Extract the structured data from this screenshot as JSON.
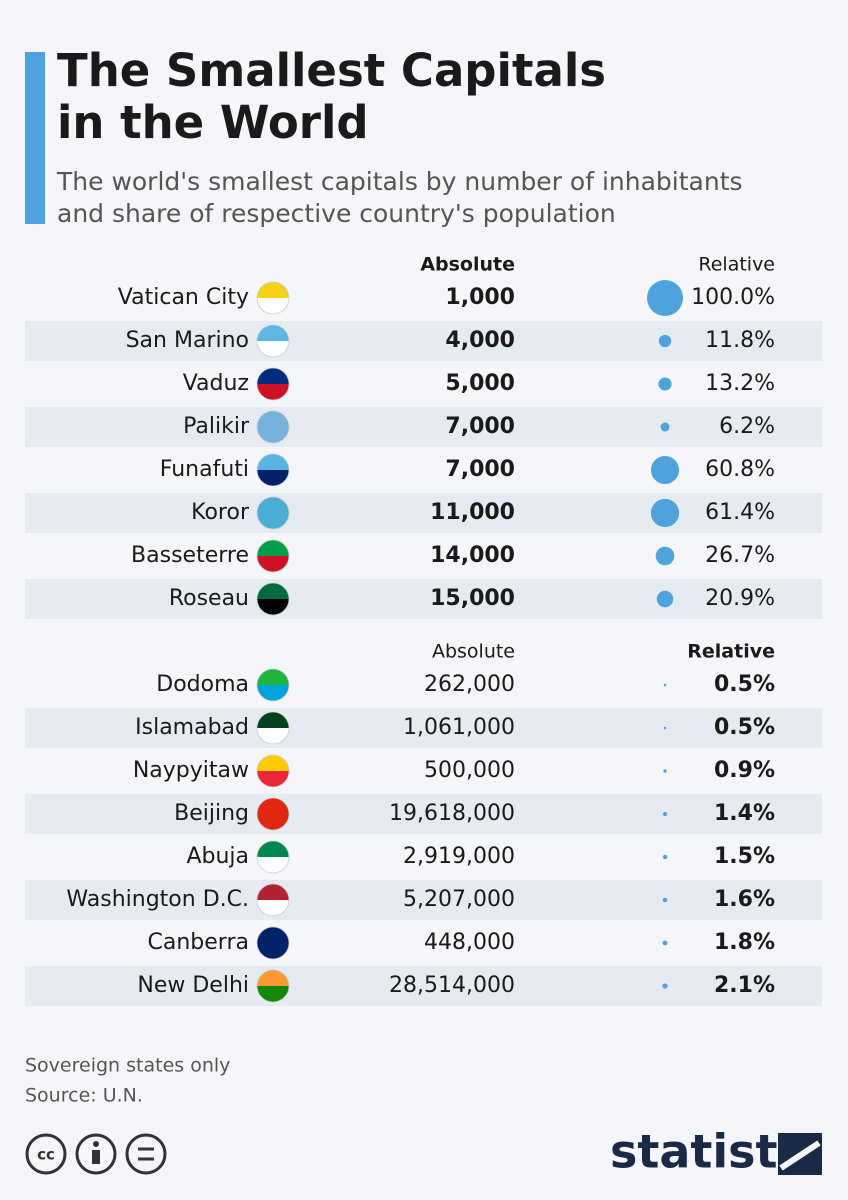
{
  "header": {
    "title_lines": [
      "The Smallest Capitals",
      "in the World"
    ],
    "subtitle_lines": [
      "The world's smallest capitals by number of inhabitants",
      "and share of respective country's population"
    ]
  },
  "chart_data": {
    "type": "bubble-table",
    "color": "#4fa3dc",
    "sections": [
      {
        "columns": [
          "Absolute",
          "Relative"
        ],
        "emphasis": "absolute",
        "categories": [
          "Vatican City",
          "San Marino",
          "Vaduz",
          "Palikir",
          "Funafuti",
          "Koror",
          "Basseterre",
          "Roseau"
        ],
        "absolute": [
          "1,000",
          "4,000",
          "5,000",
          "7,000",
          "7,000",
          "11,000",
          "14,000",
          "15,000"
        ],
        "values": [
          100.0,
          11.8,
          13.2,
          6.2,
          60.8,
          61.4,
          26.7,
          20.9
        ],
        "value_labels": [
          "100.0%",
          "11.8%",
          "13.2%",
          "6.2%",
          "60.8%",
          "61.4%",
          "26.7%",
          "20.9%"
        ]
      },
      {
        "columns": [
          "Absolute",
          "Relative"
        ],
        "emphasis": "relative",
        "categories": [
          "Dodoma",
          "Islamabad",
          "Naypyitaw",
          "Beijing",
          "Abuja",
          "Washington D.C.",
          "Canberra",
          "New Delhi"
        ],
        "absolute": [
          "262,000",
          "1,061,000",
          "500,000",
          "19,618,000",
          "2,919,000",
          "5,207,000",
          "448,000",
          "28,514,000"
        ],
        "values": [
          0.5,
          0.5,
          0.9,
          1.4,
          1.5,
          1.6,
          1.8,
          2.1
        ],
        "value_labels": [
          "0.5%",
          "0.5%",
          "0.9%",
          "1.4%",
          "1.5%",
          "1.6%",
          "1.8%",
          "2.1%"
        ]
      }
    ]
  },
  "footer": {
    "notes": [
      "Sovereign states only",
      "Source: U.N."
    ],
    "brand": "statista"
  }
}
